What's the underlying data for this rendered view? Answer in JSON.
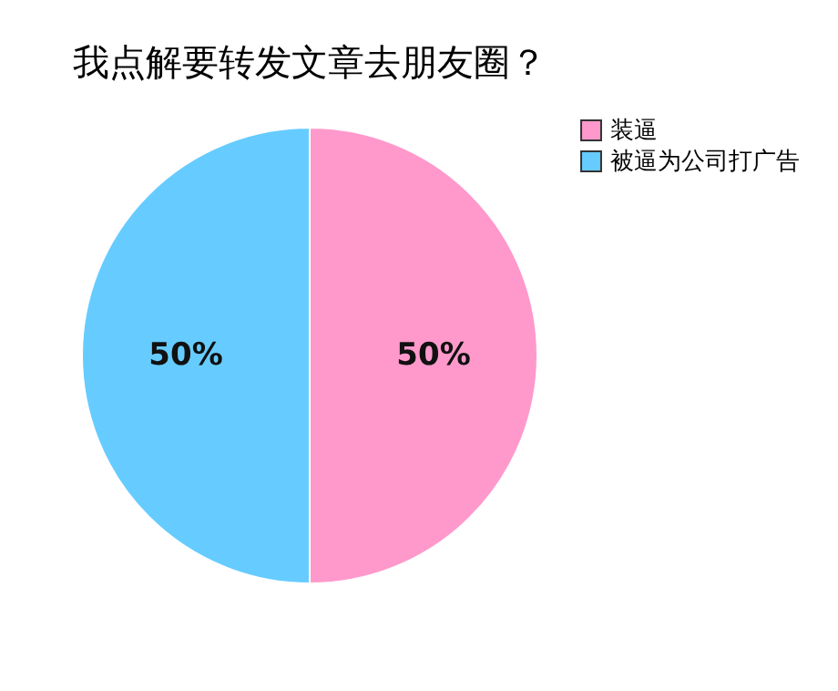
{
  "chart_data": {
    "type": "pie",
    "title": "我点解要转发文章去朋友圈？",
    "categories": [
      "装逼",
      "被逼为公司打广告"
    ],
    "values": [
      50,
      50
    ],
    "colors": [
      "#ff99cc",
      "#66ccff"
    ],
    "value_labels": [
      "50%",
      "50%"
    ],
    "legend": "right"
  }
}
